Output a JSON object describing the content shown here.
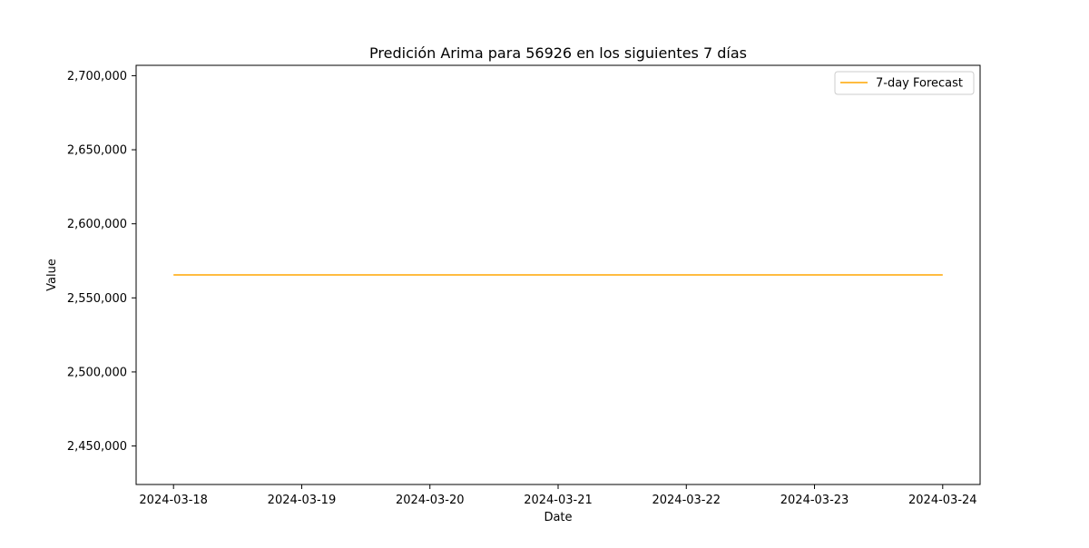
{
  "chart_data": {
    "type": "line",
    "title": "Predición Arima para 56926 en los siguientes 7 días",
    "xlabel": "Date",
    "ylabel": "Value",
    "x": [
      "2024-03-18",
      "2024-03-19",
      "2024-03-20",
      "2024-03-21",
      "2024-03-22",
      "2024-03-23",
      "2024-03-24"
    ],
    "xlim": [
      "2024-03-17T17:00",
      "2024-03-24T07:00"
    ],
    "ylim": [
      2424000,
      2707000
    ],
    "yticks": [
      2450000,
      2500000,
      2550000,
      2600000,
      2650000,
      2700000
    ],
    "ytick_labels": [
      "2,450,000",
      "2,500,000",
      "2,550,000",
      "2,600,000",
      "2,650,000",
      "2,700,000"
    ],
    "grid": false,
    "legend_position": "upper-right",
    "series": [
      {
        "name": "7-day Forecast",
        "color": "#ffa500",
        "values": [
          2565500,
          2565500,
          2565500,
          2565500,
          2565500,
          2565500,
          2565500
        ]
      }
    ]
  }
}
